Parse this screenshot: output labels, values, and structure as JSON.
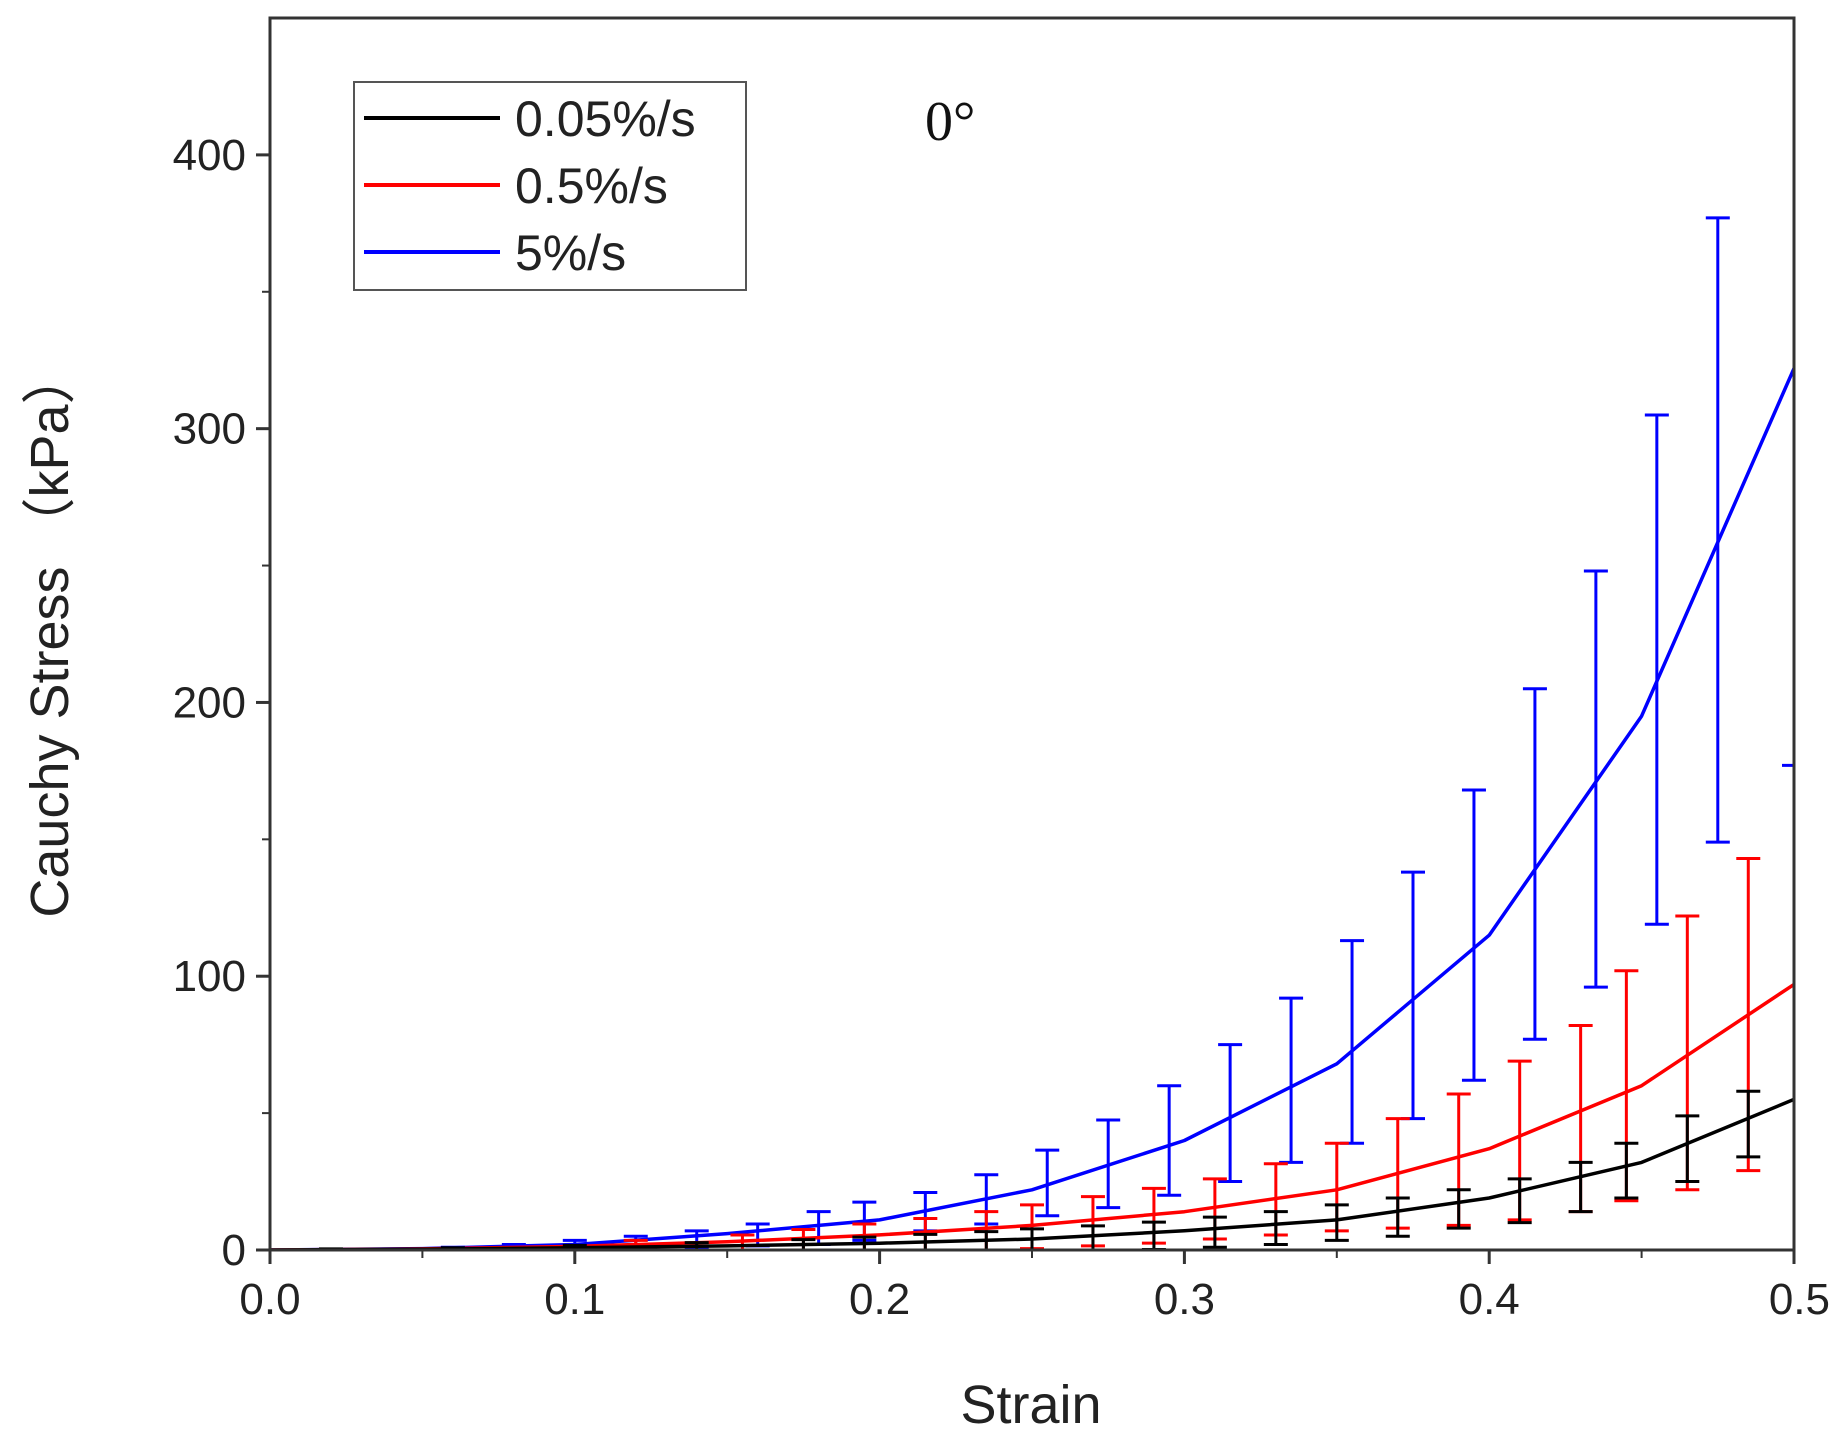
{
  "chart_data": {
    "type": "line",
    "title": "",
    "annotation": "0°",
    "xlabel": "Strain",
    "ylabel": "Cauchy Stress （kPa）",
    "xlim": [
      0,
      0.5
    ],
    "ylim": [
      0,
      450
    ],
    "x_ticks": [
      "0.0",
      "0.1",
      "0.2",
      "0.3",
      "0.4",
      "0.5"
    ],
    "y_ticks": [
      "0",
      "100",
      "200",
      "300",
      "400"
    ],
    "legend_position": "top-left",
    "grid": false,
    "series": [
      {
        "name": "0.05%/s",
        "color": "#000000",
        "x": [
          0.0,
          0.05,
          0.1,
          0.15,
          0.2,
          0.25,
          0.3,
          0.35,
          0.4,
          0.45,
          0.5
        ],
        "y": [
          0,
          0.3,
          0.8,
          1.5,
          2.5,
          4,
          7,
          11,
          19,
          32,
          55
        ],
        "errorbars": {
          "x": [
            0.02,
            0.06,
            0.1,
            0.14,
            0.175,
            0.195,
            0.215,
            0.235,
            0.25,
            0.27,
            0.29,
            0.31,
            0.33,
            0.35,
            0.37,
            0.39,
            0.41,
            0.43,
            0.445,
            0.465,
            0.485
          ],
          "y": [
            0.1,
            0.3,
            0.7,
            1.2,
            1.8,
            2.2,
            2.7,
            3.2,
            3.7,
            4.3,
            5.2,
            6.5,
            8,
            10,
            12,
            15,
            18,
            23,
            29,
            37,
            46
          ],
          "err": [
            0.3,
            0.5,
            1,
            1.5,
            2,
            2.5,
            3,
            3.5,
            4,
            4.5,
            5,
            5.5,
            6,
            6.5,
            7,
            7,
            8,
            9,
            10,
            12,
            12
          ]
        }
      },
      {
        "name": "0.5%/s",
        "color": "#ff0000",
        "x": [
          0.0,
          0.05,
          0.1,
          0.15,
          0.2,
          0.25,
          0.3,
          0.35,
          0.4,
          0.45,
          0.5
        ],
        "y": [
          0,
          0.4,
          1.3,
          3,
          5.5,
          9,
          14,
          22,
          37,
          60,
          97
        ],
        "errorbars": {
          "x": [
            0.12,
            0.155,
            0.175,
            0.195,
            0.215,
            0.235,
            0.25,
            0.27,
            0.29,
            0.31,
            0.33,
            0.35,
            0.37,
            0.39,
            0.41,
            0.43,
            0.445,
            0.465,
            0.485
          ],
          "y": [
            1.5,
            2.5,
            3.5,
            4.5,
            5.5,
            7,
            8.5,
            10.5,
            12.5,
            15,
            18.5,
            23,
            28,
            33,
            40,
            48,
            60,
            72,
            86
          ],
          "err": [
            2,
            3,
            4,
            5,
            6,
            7,
            8,
            9,
            10,
            11,
            13,
            16,
            20,
            24,
            29,
            34,
            42,
            50,
            57
          ]
        }
      },
      {
        "name": "5%/s",
        "color": "#0000ff",
        "x": [
          0.0,
          0.05,
          0.1,
          0.15,
          0.2,
          0.25,
          0.3,
          0.35,
          0.4,
          0.45,
          0.5
        ],
        "y": [
          0,
          0.5,
          2,
          6,
          11,
          22,
          40,
          68,
          115,
          195,
          322
        ],
        "errorbars": {
          "x": [
            0.06,
            0.08,
            0.1,
            0.12,
            0.14,
            0.16,
            0.18,
            0.195,
            0.215,
            0.235,
            0.255,
            0.275,
            0.295,
            0.315,
            0.335,
            0.355,
            0.375,
            0.395,
            0.415,
            0.435,
            0.455,
            0.475,
            0.5
          ],
          "y": [
            0.5,
            1,
            2,
            3,
            4,
            5.5,
            8,
            10.5,
            14,
            18.5,
            24.5,
            31.5,
            40,
            50,
            62,
            76,
            93,
            115,
            141,
            172,
            212,
            263,
            322
          ],
          "err": [
            0.5,
            1,
            1.5,
            2,
            3,
            4,
            6,
            7,
            7,
            9,
            12,
            16,
            20,
            25,
            30,
            37,
            45,
            53,
            64,
            76,
            93,
            114,
            145
          ]
        }
      }
    ]
  }
}
